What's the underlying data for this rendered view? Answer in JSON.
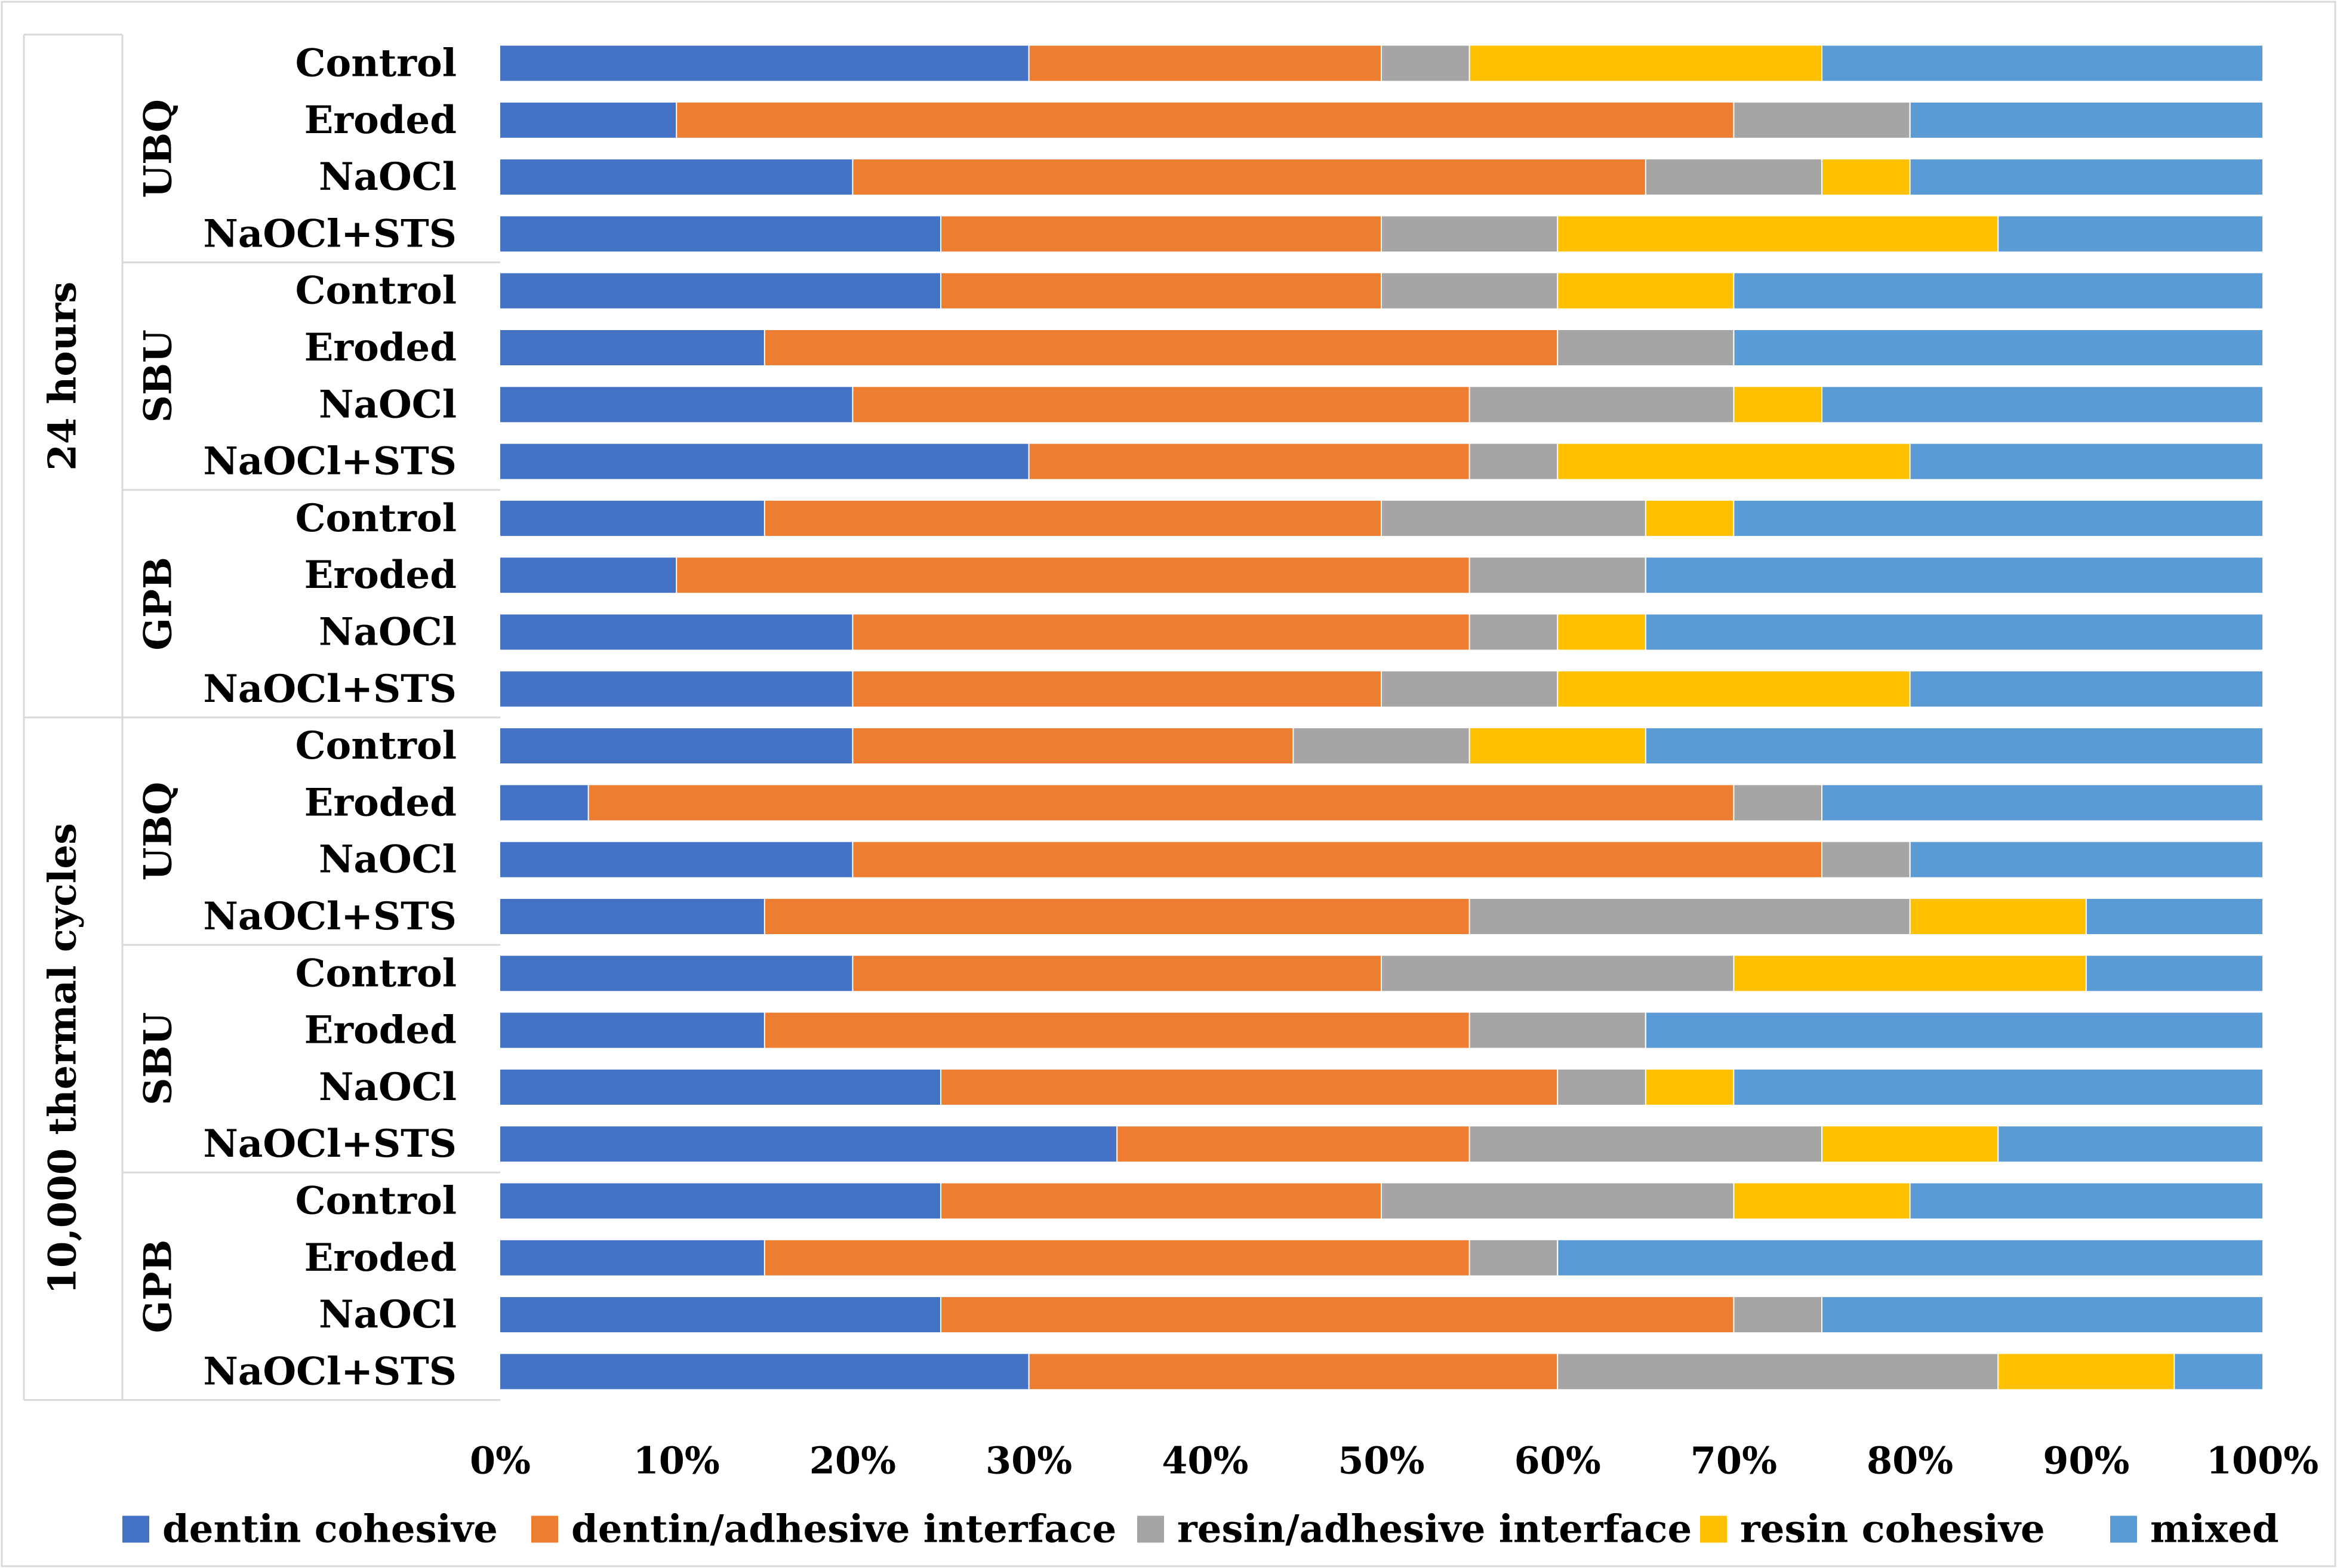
{
  "chart_data": {
    "type": "bar",
    "orientation": "horizontal",
    "stacked": "percent",
    "xlim": [
      0,
      100
    ],
    "x_ticks": [
      "0%",
      "10%",
      "20%",
      "30%",
      "40%",
      "50%",
      "60%",
      "70%",
      "80%",
      "90%",
      "100%"
    ],
    "grid": false,
    "legend_position": "bottom",
    "groups": [
      {
        "label": "24 hours",
        "subgroups": [
          {
            "label": "UBQ",
            "categories": [
              "Control",
              "Eroded",
              "NaOCl",
              "NaOCl+STS"
            ]
          },
          {
            "label": "SBU",
            "categories": [
              "Control",
              "Eroded",
              "NaOCl",
              "NaOCl+STS"
            ]
          },
          {
            "label": "GPB",
            "categories": [
              "Control",
              "Eroded",
              "NaOCl",
              "NaOCl+STS"
            ]
          }
        ]
      },
      {
        "label": "10,000 thermal cycles",
        "subgroups": [
          {
            "label": "UBQ",
            "categories": [
              "Control",
              "Eroded",
              "NaOCl",
              "NaOCl+STS"
            ]
          },
          {
            "label": "SBU",
            "categories": [
              "Control",
              "Eroded",
              "NaOCl",
              "NaOCl+STS"
            ]
          },
          {
            "label": "GPB",
            "categories": [
              "Control",
              "Eroded",
              "NaOCl",
              "NaOCl+STS"
            ]
          }
        ]
      }
    ],
    "series": [
      {
        "name": "dentin cohesive",
        "color": "#4472C4",
        "values": [
          30,
          10,
          20,
          25,
          25,
          15,
          20,
          30,
          15,
          10,
          20,
          20,
          20,
          5,
          20,
          15,
          20,
          15,
          25,
          35,
          25,
          15,
          25,
          30
        ]
      },
      {
        "name": "dentin/adhesive interface",
        "color": "#ED7D31",
        "values": [
          20,
          60,
          45,
          25,
          25,
          45,
          35,
          25,
          35,
          45,
          35,
          30,
          25,
          65,
          55,
          40,
          30,
          40,
          35,
          20,
          25,
          40,
          45,
          30
        ]
      },
      {
        "name": "resin/adhesive interface",
        "color": "#A5A5A5",
        "values": [
          5,
          10,
          10,
          10,
          10,
          10,
          15,
          5,
          15,
          10,
          5,
          10,
          10,
          5,
          5,
          25,
          20,
          10,
          5,
          20,
          20,
          5,
          5,
          25
        ]
      },
      {
        "name": "resin cohesive",
        "color": "#FFC000",
        "values": [
          20,
          0,
          5,
          25,
          10,
          0,
          5,
          20,
          5,
          0,
          5,
          20,
          10,
          0,
          0,
          10,
          20,
          0,
          5,
          10,
          10,
          0,
          0,
          10
        ]
      },
      {
        "name": "mixed",
        "color": "#5B9BD5",
        "values": [
          25,
          20,
          20,
          15,
          30,
          30,
          25,
          20,
          30,
          35,
          35,
          20,
          35,
          25,
          20,
          10,
          10,
          35,
          30,
          15,
          20,
          40,
          25,
          5
        ]
      }
    ]
  }
}
